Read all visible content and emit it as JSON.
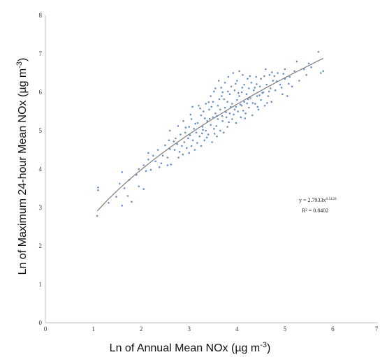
{
  "chart_data": {
    "type": "scatter",
    "xlabel": "Ln of Annual Mean NOx (µg m",
    "xlabel_sup": "-3",
    "xlabel_end": ")",
    "ylabel": "Ln of Maximum 24-hour Mean NOx (µg m",
    "ylabel_sup": "-3",
    "ylabel_end": ")",
    "xlim": [
      0,
      7
    ],
    "ylim": [
      0,
      8
    ],
    "xticks": [
      "0",
      "1",
      "2",
      "3",
      "4",
      "5",
      "6",
      "7"
    ],
    "yticks": [
      "0",
      "1",
      "2",
      "3",
      "4",
      "5",
      "6",
      "7",
      "8"
    ],
    "grid": false,
    "marker_color": "#6a8fc5",
    "trend_color": "#7d7d7d",
    "trendline": {
      "type": "power",
      "a": 2.7933,
      "b": 0.5128,
      "equation_label": "y = 2.7933x",
      "equation_exp": "0.5128",
      "r2_label": "R² = 0.8402"
    },
    "points": [
      [
        1.08,
        2.78
      ],
      [
        1.1,
        3.45
      ],
      [
        1.1,
        3.52
      ],
      [
        1.32,
        3.12
      ],
      [
        1.48,
        3.28
      ],
      [
        1.55,
        3.62
      ],
      [
        1.6,
        3.05
      ],
      [
        1.6,
        3.92
      ],
      [
        1.65,
        3.5
      ],
      [
        1.72,
        3.3
      ],
      [
        1.75,
        3.72
      ],
      [
        1.8,
        3.15
      ],
      [
        1.9,
        3.85
      ],
      [
        1.95,
        4.0
      ],
      [
        1.95,
        3.55
      ],
      [
        2.05,
        3.48
      ],
      [
        2.05,
        4.1
      ],
      [
        2.1,
        3.95
      ],
      [
        2.15,
        4.25
      ],
      [
        2.15,
        4.42
      ],
      [
        2.2,
        3.98
      ],
      [
        2.3,
        4.2
      ],
      [
        2.35,
        4.5
      ],
      [
        2.38,
        4.05
      ],
      [
        2.45,
        4.35
      ],
      [
        2.5,
        4.62
      ],
      [
        2.55,
        4.3
      ],
      [
        2.55,
        4.1
      ],
      [
        2.6,
        4.52
      ],
      [
        2.6,
        5.0
      ],
      [
        2.62,
        4.12
      ],
      [
        2.7,
        4.5
      ],
      [
        2.72,
        4.8
      ],
      [
        2.75,
        4.65
      ],
      [
        2.78,
        4.3
      ],
      [
        2.8,
        4.45
      ],
      [
        2.82,
        4.9
      ],
      [
        2.85,
        4.6
      ],
      [
        2.88,
        5.25
      ],
      [
        2.9,
        4.7
      ],
      [
        2.92,
        4.95
      ],
      [
        2.95,
        4.55
      ],
      [
        2.98,
        4.8
      ],
      [
        3.0,
        5.1
      ],
      [
        3.0,
        4.42
      ],
      [
        3.02,
        4.88
      ],
      [
        3.05,
        5.3
      ],
      [
        3.05,
        4.6
      ],
      [
        3.08,
        4.75
      ],
      [
        3.1,
        5.05
      ],
      [
        3.12,
        4.5
      ],
      [
        3.15,
        4.95
      ],
      [
        3.18,
        5.2
      ],
      [
        3.2,
        5.65
      ],
      [
        3.22,
        4.85
      ],
      [
        3.25,
        5.4
      ],
      [
        3.25,
        4.6
      ],
      [
        3.28,
        5.1
      ],
      [
        3.3,
        5.5
      ],
      [
        3.32,
        4.75
      ],
      [
        3.35,
        5.0
      ],
      [
        3.35,
        5.7
      ],
      [
        3.38,
        5.25
      ],
      [
        3.4,
        4.9
      ],
      [
        3.42,
        5.55
      ],
      [
        3.45,
        5.15
      ],
      [
        3.45,
        5.9
      ],
      [
        3.48,
        4.7
      ],
      [
        3.5,
        5.35
      ],
      [
        3.5,
        5.75
      ],
      [
        3.52,
        5.05
      ],
      [
        3.55,
        6.1
      ],
      [
        3.55,
        5.45
      ],
      [
        3.58,
        4.85
      ],
      [
        3.6,
        5.3
      ],
      [
        3.6,
        5.65
      ],
      [
        3.62,
        6.3
      ],
      [
        3.65,
        5.0
      ],
      [
        3.65,
        5.55
      ],
      [
        3.68,
        5.9
      ],
      [
        3.7,
        5.25
      ],
      [
        3.7,
        6.0
      ],
      [
        3.72,
        4.95
      ],
      [
        3.75,
        5.6
      ],
      [
        3.75,
        6.25
      ],
      [
        3.78,
        5.35
      ],
      [
        3.8,
        5.75
      ],
      [
        3.8,
        5.1
      ],
      [
        3.82,
        6.4
      ],
      [
        3.85,
        5.45
      ],
      [
        3.85,
        5.95
      ],
      [
        3.88,
        6.15
      ],
      [
        3.9,
        5.3
      ],
      [
        3.9,
        5.7
      ],
      [
        3.92,
        6.5
      ],
      [
        3.95,
        5.55
      ],
      [
        3.95,
        6.05
      ],
      [
        3.98,
        5.2
      ],
      [
        4.0,
        5.8
      ],
      [
        4.0,
        6.3
      ],
      [
        4.02,
        5.5
      ],
      [
        4.05,
        6.55
      ],
      [
        4.05,
        5.9
      ],
      [
        4.08,
        5.35
      ],
      [
        4.1,
        6.0
      ],
      [
        4.1,
        5.65
      ],
      [
        4.12,
        6.45
      ],
      [
        4.15,
        5.75
      ],
      [
        4.15,
        6.2
      ],
      [
        4.18,
        5.45
      ],
      [
        4.2,
        5.95
      ],
      [
        4.22,
        6.35
      ],
      [
        4.25,
        5.6
      ],
      [
        4.25,
        6.1
      ],
      [
        4.28,
        5.85
      ],
      [
        4.3,
        6.25
      ],
      [
        4.32,
        5.4
      ],
      [
        4.35,
        6.05
      ],
      [
        4.38,
        5.7
      ],
      [
        4.4,
        6.4
      ],
      [
        4.42,
        5.9
      ],
      [
        4.45,
        5.55
      ],
      [
        4.48,
        6.15
      ],
      [
        4.5,
        5.8
      ],
      [
        4.5,
        6.35
      ],
      [
        4.55,
        6.0
      ],
      [
        4.58,
        5.65
      ],
      [
        4.6,
        6.6
      ],
      [
        4.62,
        6.2
      ],
      [
        4.65,
        5.9
      ],
      [
        4.68,
        6.45
      ],
      [
        4.7,
        6.1
      ],
      [
        4.72,
        5.75
      ],
      [
        4.75,
        6.3
      ],
      [
        4.8,
        6.05
      ],
      [
        4.85,
        6.5
      ],
      [
        4.9,
        6.2
      ],
      [
        4.95,
        5.95
      ],
      [
        5.0,
        6.6
      ],
      [
        5.0,
        6.35
      ],
      [
        5.05,
        5.9
      ],
      [
        5.1,
        6.4
      ],
      [
        5.15,
        6.15
      ],
      [
        5.2,
        6.55
      ],
      [
        5.25,
        6.8
      ],
      [
        5.3,
        6.3
      ],
      [
        5.4,
        6.6
      ],
      [
        5.45,
        6.45
      ],
      [
        5.5,
        6.75
      ],
      [
        5.55,
        6.65
      ],
      [
        5.7,
        7.05
      ],
      [
        5.75,
        6.5
      ],
      [
        5.8,
        6.55
      ],
      [
        2.25,
        4.35
      ],
      [
        2.68,
        4.72
      ],
      [
        2.93,
        5.08
      ],
      [
        3.13,
        5.18
      ],
      [
        3.27,
        4.93
      ],
      [
        3.43,
        5.31
      ],
      [
        3.57,
        5.12
      ],
      [
        3.63,
        5.82
      ],
      [
        3.77,
        5.48
      ],
      [
        3.93,
        5.42
      ],
      [
        4.07,
        5.68
      ],
      [
        4.23,
        5.82
      ],
      [
        4.37,
        6.12
      ],
      [
        4.53,
        5.98
      ],
      [
        4.67,
        6.02
      ],
      [
        4.83,
        6.28
      ],
      [
        2.42,
        4.15
      ],
      [
        2.77,
        5.12
      ],
      [
        3.03,
        5.42
      ],
      [
        3.17,
        4.68
      ],
      [
        3.33,
        5.32
      ],
      [
        3.47,
        5.62
      ],
      [
        3.53,
        4.92
      ],
      [
        3.67,
        6.12
      ],
      [
        3.83,
        5.22
      ],
      [
        3.97,
        6.22
      ],
      [
        4.13,
        5.52
      ],
      [
        4.27,
        6.42
      ],
      [
        4.43,
        5.62
      ],
      [
        4.57,
        6.42
      ],
      [
        4.73,
        6.52
      ],
      [
        4.93,
        6.12
      ],
      [
        5.08,
        6.22
      ],
      [
        2.58,
        4.75
      ],
      [
        2.87,
        4.38
      ],
      [
        3.07,
        5.62
      ],
      [
        3.23,
        5.58
      ],
      [
        3.37,
        4.82
      ],
      [
        3.52,
        6.02
      ],
      [
        3.73,
        5.82
      ],
      [
        3.87,
        5.62
      ],
      [
        4.03,
        5.98
      ],
      [
        4.17,
        5.32
      ],
      [
        4.33,
        5.72
      ],
      [
        4.47,
        5.92
      ],
      [
        4.63,
        5.72
      ],
      [
        4.78,
        6.42
      ],
      [
        4.97,
        6.48
      ],
      [
        3.58,
        5.38
      ],
      [
        3.41,
        5.74
      ],
      [
        3.81,
        6.02
      ],
      [
        4.11,
        6.12
      ],
      [
        3.69,
        5.38
      ],
      [
        3.29,
        5.02
      ],
      [
        3.98,
        5.62
      ],
      [
        4.21,
        5.71
      ],
      [
        4.41,
        6.21
      ]
    ]
  }
}
